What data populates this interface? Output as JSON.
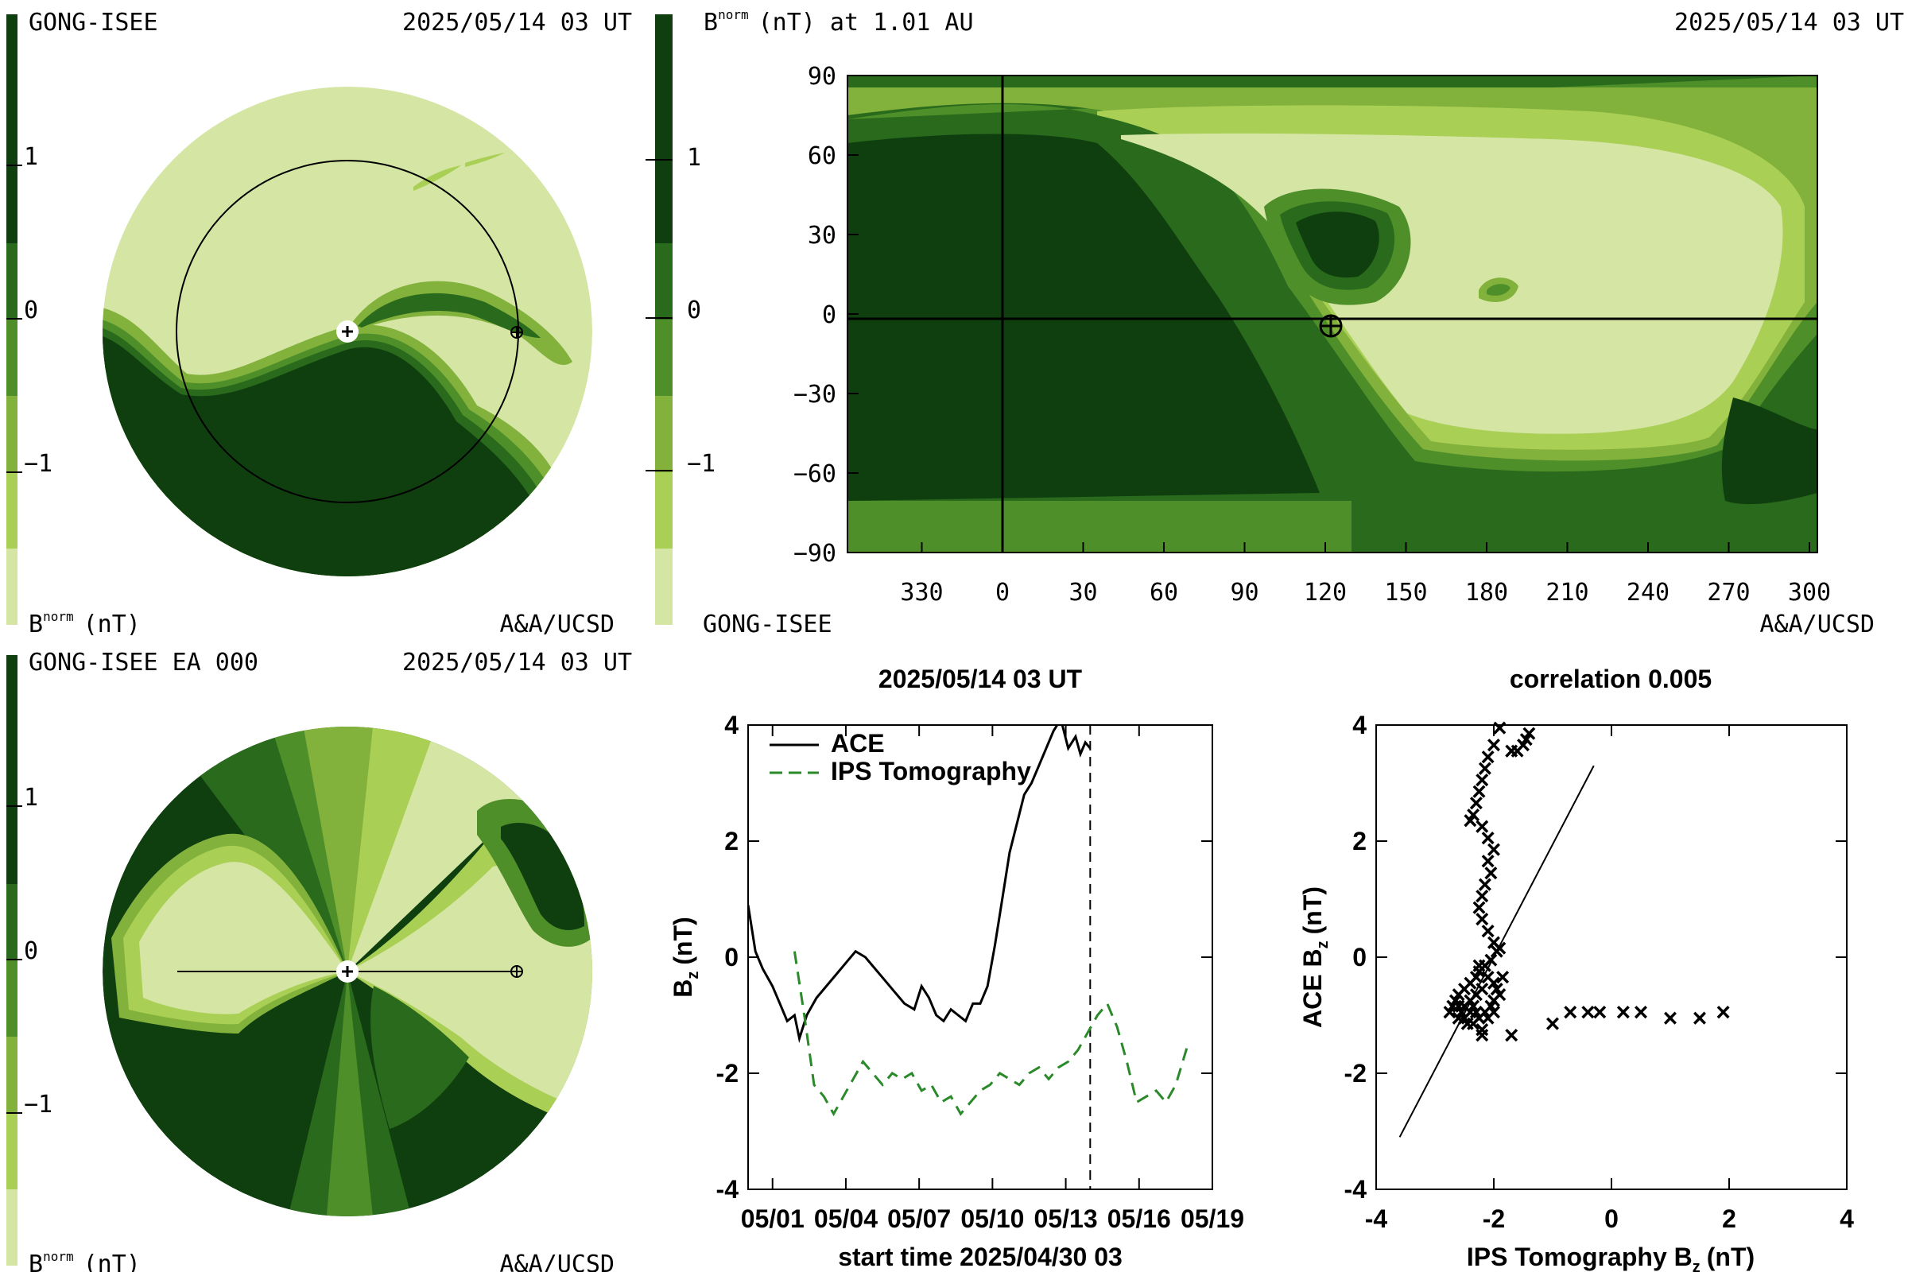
{
  "palette": [
    "#d4e5a4",
    "#a9cf54",
    "#82b23c",
    "#4f8f2a",
    "#2a6a1c",
    "#0f3f0f"
  ],
  "panel_tl": {
    "header_left": "GONG-ISEE",
    "header_right": "2025/05/14 03 UT",
    "footer_left": "B",
    "footer_sup": "norm",
    "footer_unit": "(nT)",
    "footer_right": "A&A/UCSD",
    "colorbar_ticks": [
      "1",
      "0",
      "−1"
    ]
  },
  "panel_tr": {
    "header_title": "B",
    "header_sup": "norm",
    "header_rest": "(nT) at 1.01 AU",
    "header_right": "2025/05/14 03 UT",
    "footer_left": "GONG-ISEE",
    "footer_right": "A&A/UCSD",
    "colorbar_ticks": [
      "1",
      "0",
      "−1"
    ],
    "yticks": [
      "90",
      "60",
      "30",
      "0",
      "−30",
      "−60",
      "−90"
    ],
    "xticks": [
      "330",
      "0",
      "30",
      "60",
      "90",
      "120",
      "150",
      "180",
      "210",
      "240",
      "270",
      "300"
    ]
  },
  "panel_bl": {
    "header_left": "GONG-ISEE EA 000",
    "header_right": "2025/05/14 03 UT",
    "footer_left": "B",
    "footer_sup": "norm",
    "footer_unit": "(nT)",
    "footer_right": "A&A/UCSD",
    "colorbar_ticks": [
      "1",
      "0",
      "−1"
    ]
  },
  "chart_data": [
    {
      "type": "line",
      "title": "2025/05/14 03 UT",
      "xlabel": "start time 2025/04/30 03",
      "ylabel_main": "B",
      "ylabel_sub": "z",
      "ylabel_unit": "(nT)",
      "xlim": [
        0,
        19
      ],
      "ylim": [
        -4,
        4
      ],
      "xtick_values": [
        1,
        4,
        7,
        10,
        13,
        16,
        19
      ],
      "xtick_labels": [
        "05/01",
        "05/04",
        "05/07",
        "05/10",
        "05/13",
        "05/16",
        "05/19"
      ],
      "ytick_values": [
        4,
        2,
        0,
        -2,
        -4
      ],
      "ytick_labels": [
        "4",
        "2",
        "0",
        "-2",
        "-4"
      ],
      "marker_x": 14.0,
      "series": [
        {
          "name": "ACE",
          "color": "#000000",
          "dash": "solid",
          "x": [
            0.0,
            0.3,
            0.6,
            1.0,
            1.3,
            1.6,
            1.9,
            2.1,
            2.4,
            2.8,
            3.2,
            3.6,
            4.0,
            4.4,
            4.8,
            5.2,
            5.6,
            6.0,
            6.4,
            6.8,
            7.1,
            7.4,
            7.7,
            8.0,
            8.3,
            8.6,
            8.9,
            9.2,
            9.5,
            9.8,
            10.1,
            10.4,
            10.7,
            11.0,
            11.3,
            11.6,
            11.9,
            12.2,
            12.5,
            12.8,
            13.1,
            13.4,
            13.6,
            13.8,
            14.0
          ],
          "y": [
            0.9,
            0.1,
            -0.2,
            -0.5,
            -0.8,
            -1.1,
            -1.0,
            -1.4,
            -1.0,
            -0.7,
            -0.5,
            -0.3,
            -0.1,
            0.1,
            0.0,
            -0.2,
            -0.4,
            -0.6,
            -0.8,
            -0.9,
            -0.5,
            -0.7,
            -1.0,
            -1.1,
            -0.9,
            -1.0,
            -1.1,
            -0.8,
            -0.8,
            -0.5,
            0.2,
            1.0,
            1.8,
            2.3,
            2.8,
            3.0,
            3.3,
            3.6,
            3.9,
            4.1,
            3.6,
            3.8,
            3.5,
            3.7,
            3.6
          ]
        },
        {
          "name": "IPS Tomography",
          "color": "#2a8a2a",
          "dash": "dashed",
          "x": [
            1.9,
            2.3,
            2.7,
            3.1,
            3.5,
            3.9,
            4.3,
            4.7,
            5.1,
            5.5,
            5.9,
            6.3,
            6.7,
            7.1,
            7.5,
            7.9,
            8.3,
            8.7,
            9.1,
            9.5,
            9.9,
            10.3,
            10.7,
            11.1,
            11.5,
            11.9,
            12.3,
            12.7,
            13.1,
            13.5,
            13.9,
            14.3,
            14.7,
            15.1,
            15.5,
            15.9,
            16.3,
            16.7,
            17.1,
            17.5,
            18.0
          ],
          "y": [
            0.1,
            -1.0,
            -2.2,
            -2.4,
            -2.7,
            -2.4,
            -2.1,
            -1.8,
            -2.0,
            -2.2,
            -2.0,
            -2.1,
            -2.0,
            -2.3,
            -2.2,
            -2.5,
            -2.4,
            -2.7,
            -2.5,
            -2.3,
            -2.2,
            -2.0,
            -2.1,
            -2.2,
            -2.0,
            -1.9,
            -2.1,
            -1.9,
            -1.8,
            -1.6,
            -1.3,
            -1.0,
            -0.8,
            -1.2,
            -1.8,
            -2.5,
            -2.4,
            -2.3,
            -2.5,
            -2.2,
            -1.5
          ]
        }
      ]
    },
    {
      "type": "scatter",
      "title": "correlation 0.005",
      "xlabel_main": "IPS Tomography B",
      "xlabel_sub": "z",
      "xlabel_unit": "(nT)",
      "ylabel_main": "ACE B",
      "ylabel_sub": "z",
      "ylabel_unit": "(nT)",
      "xlim": [
        -4,
        4
      ],
      "ylim": [
        -4,
        4
      ],
      "xtick_values": [
        -4,
        -2,
        0,
        2,
        4
      ],
      "xtick_labels": [
        "-4",
        "-2",
        "0",
        "2",
        "4"
      ],
      "ytick_values": [
        4,
        2,
        0,
        -2,
        -4
      ],
      "ytick_labels": [
        "4",
        "2",
        "0",
        "-2",
        "-4"
      ],
      "fit_line": {
        "x": [
          -3.6,
          -0.3
        ],
        "y": [
          -3.1,
          3.3
        ]
      },
      "points": [
        [
          -1.9,
          3.9
        ],
        [
          -1.6,
          3.5
        ],
        [
          -1.5,
          3.6
        ],
        [
          -1.45,
          3.7
        ],
        [
          -1.4,
          3.8
        ],
        [
          -1.7,
          3.5
        ],
        [
          -2.0,
          3.6
        ],
        [
          -2.1,
          3.4
        ],
        [
          -2.15,
          3.2
        ],
        [
          -2.2,
          3.0
        ],
        [
          -2.25,
          2.8
        ],
        [
          -2.3,
          2.6
        ],
        [
          -2.35,
          2.4
        ],
        [
          -2.4,
          2.3
        ],
        [
          -2.2,
          2.2
        ],
        [
          -2.1,
          2.0
        ],
        [
          -2.0,
          1.8
        ],
        [
          -2.1,
          1.6
        ],
        [
          -2.05,
          1.4
        ],
        [
          -2.15,
          1.2
        ],
        [
          -2.2,
          1.0
        ],
        [
          -2.25,
          0.8
        ],
        [
          -2.2,
          0.6
        ],
        [
          -2.1,
          0.4
        ],
        [
          -2.0,
          0.2
        ],
        [
          -1.95,
          0.05
        ],
        [
          -1.9,
          0.1
        ],
        [
          -2.05,
          -0.1
        ],
        [
          -2.15,
          -0.2
        ],
        [
          -2.25,
          -0.3
        ],
        [
          -2.3,
          -0.4
        ],
        [
          -2.4,
          -0.5
        ],
        [
          -2.5,
          -0.6
        ],
        [
          -2.6,
          -0.7
        ],
        [
          -2.65,
          -0.8
        ],
        [
          -2.6,
          -0.9
        ],
        [
          -2.55,
          -1.0
        ],
        [
          -2.5,
          -1.1
        ],
        [
          -2.45,
          -1.2
        ],
        [
          -2.4,
          -1.0
        ],
        [
          -2.35,
          -0.9
        ],
        [
          -2.3,
          -1.0
        ],
        [
          -2.25,
          -1.1
        ],
        [
          -2.2,
          -1.3
        ],
        [
          -2.1,
          -1.1
        ],
        [
          -2.05,
          -0.9
        ],
        [
          -2.0,
          -0.8
        ],
        [
          -1.95,
          -0.6
        ],
        [
          -2.0,
          -0.5
        ],
        [
          -2.1,
          -0.4
        ],
        [
          -2.2,
          -0.6
        ],
        [
          -2.3,
          -0.7
        ],
        [
          -2.4,
          -0.8
        ],
        [
          -2.5,
          -0.9
        ],
        [
          -2.7,
          -0.9
        ],
        [
          -2.75,
          -1.0
        ],
        [
          -2.6,
          -1.1
        ],
        [
          -2.35,
          -1.2
        ],
        [
          -2.15,
          -1.0
        ],
        [
          -2.0,
          -1.0
        ],
        [
          -1.9,
          -0.7
        ],
        [
          -1.85,
          -0.4
        ],
        [
          -2.25,
          -0.2
        ],
        [
          -2.2,
          -1.4
        ],
        [
          -1.7,
          -1.4
        ],
        [
          -1.0,
          -1.2
        ],
        [
          -0.7,
          -1.0
        ],
        [
          -0.4,
          -1.0
        ],
        [
          -0.2,
          -1.0
        ],
        [
          0.2,
          -1.0
        ],
        [
          0.5,
          -1.0
        ],
        [
          1.0,
          -1.1
        ],
        [
          1.5,
          -1.1
        ],
        [
          1.9,
          -1.0
        ]
      ]
    }
  ]
}
